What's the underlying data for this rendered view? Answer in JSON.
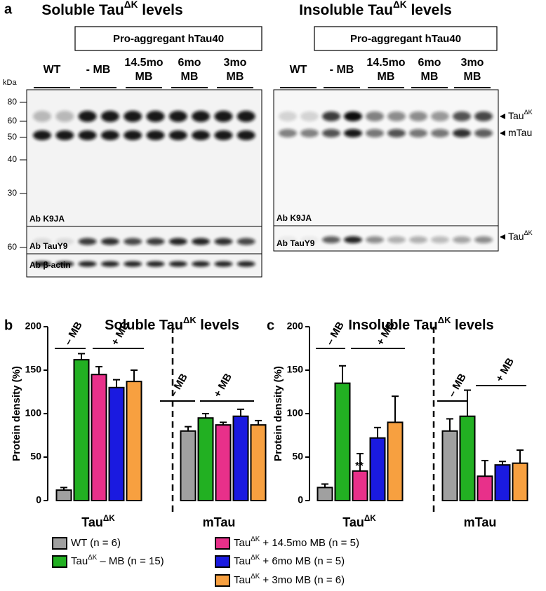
{
  "panel_a": {
    "letter": "a",
    "kda": "kDa",
    "blots": [
      {
        "title": [
          "Soluble Tau",
          "ΔK",
          " levels"
        ],
        "box": "Pro-aggregant hTau40",
        "lane_groups": [
          {
            "label": [
              "WT"
            ],
            "color": "#000000"
          },
          {
            "label": [
              "- MB"
            ],
            "color": "#22b022"
          },
          {
            "label": [
              "14.5mo",
              "MB"
            ],
            "color": "#e8308a"
          },
          {
            "label": [
              "6mo",
              "MB"
            ],
            "color": "#1a1ae0"
          },
          {
            "label": [
              "3mo",
              "MB"
            ],
            "color": "#f7a040"
          }
        ],
        "markers": [
          80,
          60,
          50,
          40,
          30
        ],
        "marker_lower": 60,
        "antibodies": [
          "Ab K9JA",
          "Ab TauY9",
          "Ab β-actin"
        ]
      },
      {
        "title": [
          "Insoluble Tau",
          "ΔK",
          " levels"
        ],
        "box": "Pro-aggregant hTau40",
        "lane_groups": [
          {
            "label": [
              "WT"
            ],
            "color": "#000000"
          },
          {
            "label": [
              "- MB"
            ],
            "color": "#22b022"
          },
          {
            "label": [
              "14.5mo",
              "MB"
            ],
            "color": "#e8308a"
          },
          {
            "label": [
              "6mo",
              "MB"
            ],
            "color": "#1a1ae0"
          },
          {
            "label": [
              "3mo",
              "MB"
            ],
            "color": "#f7a040"
          }
        ],
        "antibodies": [
          "Ab K9JA",
          "Ab TauY9"
        ],
        "arrows": [
          [
            "Tau",
            "ΔK"
          ],
          [
            "mTau"
          ],
          [
            "Tau",
            "ΔK"
          ]
        ]
      }
    ]
  },
  "chart_data": [
    {
      "type": "bar",
      "panel": "b",
      "title": [
        "Soluble Tau",
        "ΔK",
        " levels"
      ],
      "y_label": "Protein density (%)",
      "categories": [
        [
          "Tau",
          "ΔK"
        ],
        "mTau"
      ],
      "ylim": [
        0,
        200
      ],
      "yticks": [
        0,
        50,
        100,
        150,
        200
      ],
      "annotations": [
        "– MB",
        "+ MB",
        "– MB",
        "+ MB"
      ],
      "series": [
        {
          "name": [
            "WT (n = 6)"
          ],
          "color": "#a0a0a0",
          "values": [
            12,
            80
          ],
          "errors": [
            3,
            5
          ]
        },
        {
          "name": [
            "Tau",
            "ΔK",
            " – MB (n = 15)"
          ],
          "color": "#22b022",
          "values": [
            162,
            95
          ],
          "errors": [
            7,
            5
          ]
        },
        {
          "name": [
            "Tau",
            "ΔK",
            " + 14.5mo MB (n = 5)"
          ],
          "color": "#e8308a",
          "values": [
            145,
            87
          ],
          "errors": [
            9,
            3
          ]
        },
        {
          "name": [
            "Tau",
            "ΔK",
            " + 6mo MB (n = 5)"
          ],
          "color": "#1a1ae0",
          "values": [
            130,
            97
          ],
          "errors": [
            9,
            8
          ]
        },
        {
          "name": [
            "Tau",
            "ΔK",
            " + 3mo MB (n = 6)"
          ],
          "color": "#f7a040",
          "values": [
            137,
            87
          ],
          "errors": [
            13,
            5
          ]
        }
      ]
    },
    {
      "type": "bar",
      "panel": "c",
      "title": [
        "Insoluble Tau",
        "ΔK",
        " levels"
      ],
      "y_label": "Protein density (%)",
      "categories": [
        [
          "Tau",
          "ΔK"
        ],
        "mTau"
      ],
      "ylim": [
        0,
        200
      ],
      "yticks": [
        0,
        50,
        100,
        150,
        200
      ],
      "annotations": [
        "– MB",
        "+ MB",
        "– MB",
        "+ MB",
        "**"
      ],
      "series": [
        {
          "color": "#a0a0a0",
          "values": [
            15,
            80
          ],
          "errors": [
            4,
            14
          ]
        },
        {
          "color": "#22b022",
          "values": [
            135,
            97
          ],
          "errors": [
            20,
            30
          ]
        },
        {
          "color": "#e8308a",
          "values": [
            34,
            28
          ],
          "errors": [
            20,
            18
          ]
        },
        {
          "color": "#1a1ae0",
          "values": [
            72,
            41
          ],
          "errors": [
            12,
            4
          ]
        },
        {
          "color": "#f7a040",
          "values": [
            90,
            43
          ],
          "errors": [
            30,
            15
          ]
        }
      ]
    }
  ]
}
